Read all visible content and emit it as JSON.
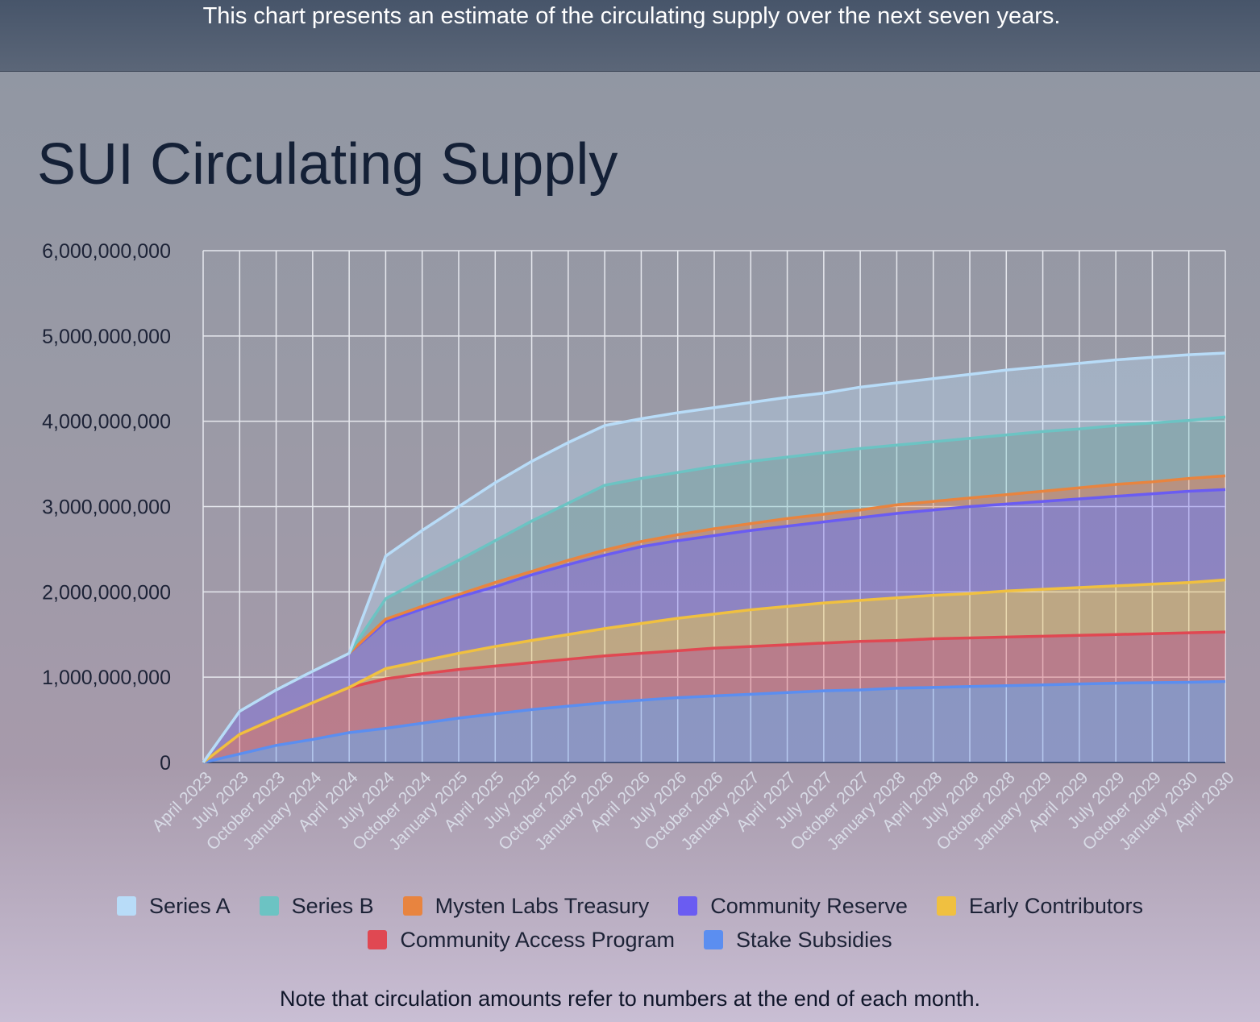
{
  "chart_data": {
    "type": "stacked_area",
    "description": "This chart presents an estimate of the circulating supply over the next seven years.",
    "title": "SUI Circulating Supply",
    "note": "Note that circulation amounts refer to numbers at the end of each month.",
    "categories": [
      "April 2023",
      "July 2023",
      "October 2023",
      "January 2024",
      "April 2024",
      "July 2024",
      "October 2024",
      "January 2025",
      "April 2025",
      "July 2025",
      "October 2025",
      "January 2026",
      "April 2026",
      "July 2026",
      "October 2026",
      "January 2027",
      "April 2027",
      "July 2027",
      "October 2027",
      "January 2028",
      "April 2028",
      "July 2028",
      "October 2028",
      "January 2029",
      "April 2029",
      "July 2029",
      "October 2029",
      "January 2030",
      "April 2030"
    ],
    "ylim": [
      0,
      6000000000
    ],
    "yticks": [
      0,
      {
        "value": 1000000000,
        "label": "1,000,000,000"
      },
      {
        "value": 2000000000,
        "label": "2,000,000,000"
      },
      {
        "value": 3000000000,
        "label": "3,000,000,000"
      },
      {
        "value": 4000000000,
        "label": "4,000,000,000"
      },
      {
        "value": 5000000000,
        "label": "5,000,000,000"
      },
      {
        "value": 6000000000,
        "label": "6,000,000,000"
      }
    ],
    "grid": true,
    "series": [
      {
        "name": "Series A",
        "color": "#b8dcf8",
        "values": [
          0,
          0,
          0,
          0,
          0,
          500000000,
          570000000,
          630000000,
          680000000,
          700000000,
          710000000,
          700000000,
          700000000,
          700000000,
          690000000,
          690000000,
          700000000,
          700000000,
          720000000,
          730000000,
          740000000,
          750000000,
          760000000,
          760000000,
          770000000,
          770000000,
          770000000,
          770000000,
          750000000
        ]
      },
      {
        "name": "Series B",
        "color": "#6cc3c3",
        "values": [
          0,
          0,
          0,
          0,
          0,
          240000000,
          320000000,
          400000000,
          490000000,
          590000000,
          670000000,
          760000000,
          740000000,
          730000000,
          730000000,
          730000000,
          720000000,
          720000000,
          720000000,
          700000000,
          700000000,
          700000000,
          700000000,
          700000000,
          690000000,
          690000000,
          690000000,
          680000000,
          690000000
        ]
      },
      {
        "name": "Mysten Labs Treasury",
        "color": "#e8843f",
        "values": [
          0,
          0,
          0,
          0,
          0,
          30000000,
          30000000,
          30000000,
          50000000,
          40000000,
          50000000,
          60000000,
          60000000,
          70000000,
          80000000,
          80000000,
          90000000,
          90000000,
          90000000,
          100000000,
          100000000,
          100000000,
          110000000,
          120000000,
          130000000,
          140000000,
          140000000,
          150000000,
          160000000
        ]
      },
      {
        "name": "Community Reserve",
        "color": "#6a5cf2",
        "values": [
          0,
          270000000,
          330000000,
          370000000,
          400000000,
          550000000,
          610000000,
          660000000,
          700000000,
          770000000,
          820000000,
          860000000,
          900000000,
          910000000,
          920000000,
          930000000,
          940000000,
          950000000,
          970000000,
          990000000,
          1000000000,
          1020000000,
          1020000000,
          1030000000,
          1040000000,
          1050000000,
          1060000000,
          1070000000,
          1060000000
        ]
      },
      {
        "name": "Early Contributors",
        "color": "#f0c040",
        "values": [
          0,
          0,
          0,
          0,
          0,
          120000000,
          150000000,
          190000000,
          230000000,
          260000000,
          290000000,
          320000000,
          350000000,
          380000000,
          400000000,
          430000000,
          450000000,
          470000000,
          480000000,
          500000000,
          510000000,
          520000000,
          540000000,
          550000000,
          560000000,
          570000000,
          580000000,
          590000000,
          610000000
        ]
      },
      {
        "name": "Community Access Program",
        "color": "#e04852",
        "values": [
          0,
          230000000,
          320000000,
          430000000,
          530000000,
          580000000,
          580000000,
          570000000,
          560000000,
          550000000,
          550000000,
          550000000,
          550000000,
          550000000,
          560000000,
          560000000,
          560000000,
          560000000,
          570000000,
          560000000,
          570000000,
          570000000,
          570000000,
          570000000,
          570000000,
          570000000,
          575000000,
          580000000,
          580000000
        ]
      },
      {
        "name": "Stake Subsidies",
        "color": "#5b8ef0",
        "values": [
          0,
          100000000,
          200000000,
          270000000,
          350000000,
          400000000,
          460000000,
          520000000,
          570000000,
          620000000,
          660000000,
          700000000,
          730000000,
          760000000,
          780000000,
          800000000,
          820000000,
          840000000,
          850000000,
          870000000,
          880000000,
          890000000,
          900000000,
          910000000,
          920000000,
          930000000,
          935000000,
          940000000,
          950000000
        ]
      }
    ]
  }
}
